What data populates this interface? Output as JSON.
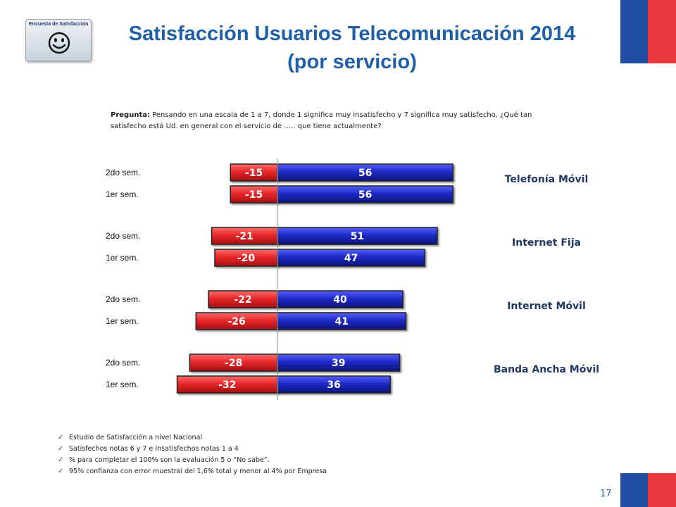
{
  "badge": {
    "label": "Encuesta de Satisfacción",
    "icon": "smiley-face-icon"
  },
  "title_line1": "Satisfacción Usuarios Telecomunicación 2014",
  "title_line2": "(por servicio)",
  "question": {
    "label": "Pregunta:",
    "text": "Pensando en una escala de 1 a 7, donde 1 significa muy insatisfecho y 7 significa muy satisfecho, ¿Qué tan satisfecho está Ud. en general con el servicio de ….. que tiene actualmente?"
  },
  "notes": [
    "Estudio de Satisfacción a nivel Nacional",
    "Satisfechos notas 6 y 7 e Insatisfechos notas 1 a 4",
    "% para completar el 100% son la evaluación 5 o “No sabe”.",
    "95% confianza con error muestral del 1,6% total y menor al 4% por Empresa"
  ],
  "page_number": "17",
  "colors": {
    "negative": "#e8292b",
    "positive": "#1f2bc8",
    "title": "#1e5fa8",
    "service": "#1f3864"
  },
  "chart_data": {
    "type": "bar",
    "orientation": "horizontal-diverging",
    "groups": [
      {
        "name": "Telefonía Móvil",
        "rows": [
          {
            "label": "2do sem.",
            "negative": -15,
            "positive": 56
          },
          {
            "label": "1er sem.",
            "negative": -15,
            "positive": 56
          }
        ]
      },
      {
        "name": "Internet Fija",
        "rows": [
          {
            "label": "2do sem.",
            "negative": -21,
            "positive": 51
          },
          {
            "label": "1er sem.",
            "negative": -20,
            "positive": 47
          }
        ]
      },
      {
        "name": "Internet  Móvil",
        "rows": [
          {
            "label": "2do sem.",
            "negative": -22,
            "positive": 40
          },
          {
            "label": "1er sem.",
            "negative": -26,
            "positive": 41
          }
        ]
      },
      {
        "name": "Banda Ancha Móvil",
        "rows": [
          {
            "label": "2do sem.",
            "negative": -28,
            "positive": 39
          },
          {
            "label": "1er sem.",
            "negative": -32,
            "positive": 36
          }
        ]
      }
    ]
  }
}
